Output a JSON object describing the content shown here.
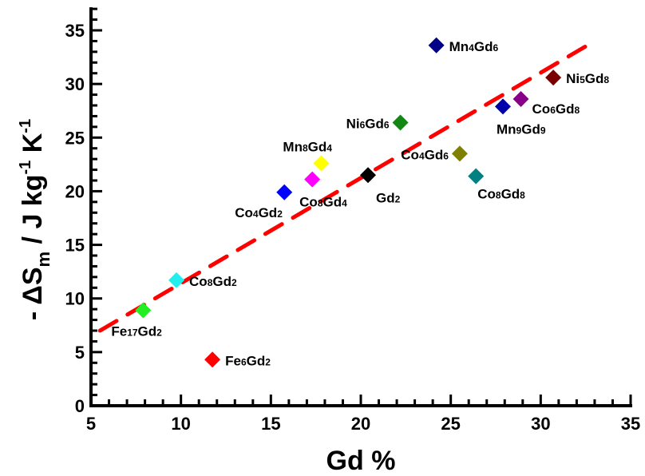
{
  "chart_data": {
    "type": "scatter",
    "title": "",
    "xlabel": "Gd %",
    "ylabel": {
      "prefix": "- ΔS",
      "sub": "m",
      "mid": " / J kg",
      "sup1": "-1",
      "mid2": " K",
      "sup2": "-1"
    },
    "xlim": [
      5,
      35
    ],
    "ylim": [
      0,
      37
    ],
    "xticks": [
      5,
      10,
      15,
      20,
      25,
      30,
      35
    ],
    "yticks": [
      0,
      5,
      10,
      15,
      20,
      25,
      30,
      35
    ],
    "xtick_labels": [
      "5",
      "10",
      "15",
      "20",
      "25",
      "30",
      "35"
    ],
    "ytick_labels": [
      "0",
      "5",
      "10",
      "15",
      "20",
      "25",
      "30",
      "35"
    ],
    "grid": false,
    "legend": "none",
    "points": [
      {
        "label": [
          [
            "Fe",
            ""
          ],
          [
            "17",
            "sub"
          ],
          [
            "Gd",
            ""
          ],
          [
            "2",
            "sub"
          ]
        ],
        "x": 7.9,
        "y": 8.9,
        "color": "#22ee22",
        "label_pos": "below-left"
      },
      {
        "label": [
          [
            "Co",
            ""
          ],
          [
            "8",
            "sub"
          ],
          [
            "Gd",
            ""
          ],
          [
            "2",
            "sub"
          ]
        ],
        "x": 9.75,
        "y": 11.7,
        "color": "#22eeee",
        "label_pos": "right"
      },
      {
        "label": [
          [
            "Fe",
            ""
          ],
          [
            "6",
            "sub"
          ],
          [
            "Gd",
            ""
          ],
          [
            "2",
            "sub"
          ]
        ],
        "x": 11.75,
        "y": 4.3,
        "color": "#ff0000",
        "label_pos": "right"
      },
      {
        "label": [
          [
            "Co",
            ""
          ],
          [
            "4",
            "sub"
          ],
          [
            "Gd",
            ""
          ],
          [
            "2",
            "sub"
          ]
        ],
        "x": 15.75,
        "y": 19.9,
        "color": "#0000ff",
        "label_pos": "below-left"
      },
      {
        "label": [
          [
            "Co",
            ""
          ],
          [
            "8",
            "sub"
          ],
          [
            "Gd",
            ""
          ],
          [
            "4",
            "sub"
          ]
        ],
        "x": 17.3,
        "y": 21.1,
        "color": "#ff00ff",
        "label_pos": "below"
      },
      {
        "label": [
          [
            "Mn",
            ""
          ],
          [
            "8",
            "sub"
          ],
          [
            "Gd",
            ""
          ],
          [
            "4",
            "sub"
          ]
        ],
        "x": 17.8,
        "y": 22.6,
        "color": "#ffff00",
        "label_pos": "above"
      },
      {
        "label": [
          [
            "Gd",
            ""
          ],
          [
            "2",
            "sub"
          ]
        ],
        "x": 20.4,
        "y": 21.5,
        "color": "#000000",
        "label_pos": "below-right"
      },
      {
        "label": [
          [
            "Ni",
            ""
          ],
          [
            "6",
            "sub"
          ],
          [
            "Gd",
            ""
          ],
          [
            "6",
            "sub"
          ]
        ],
        "x": 22.2,
        "y": 26.4,
        "color": "#118811",
        "label_pos": "left"
      },
      {
        "label": [
          [
            "Co",
            ""
          ],
          [
            "4",
            "sub"
          ],
          [
            "Gd",
            ""
          ],
          [
            "6",
            "sub"
          ]
        ],
        "x": 25.5,
        "y": 23.5,
        "color": "#808000",
        "label_pos": "left"
      },
      {
        "label": [
          [
            "Co",
            ""
          ],
          [
            "8",
            "sub"
          ],
          [
            "Gd",
            ""
          ],
          [
            "8",
            "sub"
          ]
        ],
        "x": 26.4,
        "y": 21.4,
        "color": "#008080",
        "label_pos": "below-right"
      },
      {
        "label": [
          [
            "Mn",
            ""
          ],
          [
            "4",
            "sub"
          ],
          [
            "Gd",
            ""
          ],
          [
            "6",
            "sub"
          ]
        ],
        "x": 24.2,
        "y": 33.6,
        "color": "#000088",
        "label_pos": "right"
      },
      {
        "label": [
          [
            "Mn",
            ""
          ],
          [
            "9",
            "sub"
          ],
          [
            "Gd",
            ""
          ],
          [
            "9",
            "sub"
          ]
        ],
        "x": 27.9,
        "y": 27.9,
        "color": "#0000aa",
        "label_pos": "below"
      },
      {
        "label": [
          [
            "Co",
            ""
          ],
          [
            "6",
            "sub"
          ],
          [
            "Gd",
            ""
          ],
          [
            "8",
            "sub"
          ]
        ],
        "x": 28.9,
        "y": 28.6,
        "color": "#880088",
        "label_pos": "below-right"
      },
      {
        "label": [
          [
            "Ni",
            ""
          ],
          [
            "5",
            "sub"
          ],
          [
            "Gd",
            ""
          ],
          [
            "8",
            "sub"
          ]
        ],
        "x": 30.7,
        "y": 30.6,
        "color": "#7a0000",
        "label_pos": "right"
      }
    ],
    "fit_line": {
      "x": [
        5.5,
        32.8
      ],
      "y": [
        7.0,
        33.8
      ],
      "color": "#ff0000",
      "style": "dashed"
    }
  }
}
